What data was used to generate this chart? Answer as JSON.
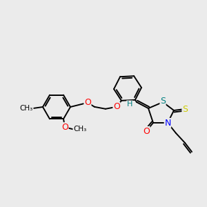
{
  "bg_color": "#ebebeb",
  "atom_colors": {
    "O": "#ff0000",
    "N": "#0000ff",
    "S_yellow": "#cccc00",
    "S_teal": "#008080",
    "H": "#008080",
    "C": "#000000"
  },
  "bond_color": "#000000",
  "bond_width": 1.4,
  "figsize": [
    3.0,
    3.0
  ],
  "dpi": 100,
  "xlim": [
    0,
    300
  ],
  "ylim": [
    0,
    300
  ]
}
